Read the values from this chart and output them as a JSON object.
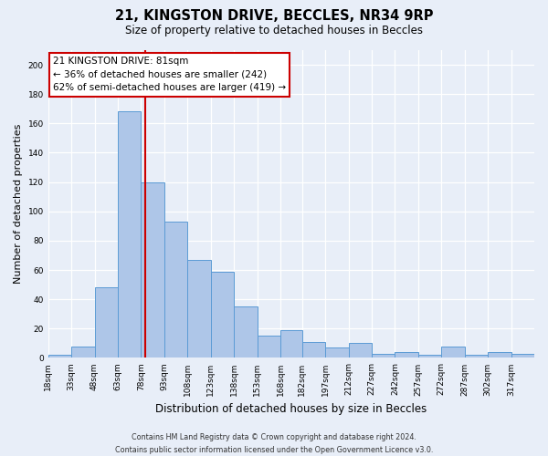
{
  "title": "21, KINGSTON DRIVE, BECCLES, NR34 9RP",
  "subtitle": "Size of property relative to detached houses in Beccles",
  "xlabel": "Distribution of detached houses by size in Beccles",
  "ylabel": "Number of detached properties",
  "bin_edges": [
    18,
    33,
    48,
    63,
    78,
    93,
    108,
    123,
    138,
    153,
    168,
    182,
    197,
    212,
    227,
    242,
    257,
    272,
    287,
    302,
    317,
    332
  ],
  "bin_labels": [
    "18sqm",
    "33sqm",
    "48sqm",
    "63sqm",
    "78sqm",
    "93sqm",
    "108sqm",
    "123sqm",
    "138sqm",
    "153sqm",
    "168sqm",
    "182sqm",
    "197sqm",
    "212sqm",
    "227sqm",
    "242sqm",
    "257sqm",
    "272sqm",
    "287sqm",
    "302sqm",
    "317sqm"
  ],
  "bar_values": [
    2,
    8,
    48,
    168,
    120,
    93,
    67,
    59,
    35,
    15,
    19,
    11,
    7,
    10,
    3,
    4,
    2,
    8,
    2,
    4,
    3
  ],
  "bar_color": "#aec6e8",
  "bar_edge_color": "#5b9bd5",
  "vline_x": 81,
  "vline_color": "#cc0000",
  "ylim": [
    0,
    210
  ],
  "yticks": [
    0,
    20,
    40,
    60,
    80,
    100,
    120,
    140,
    160,
    180,
    200
  ],
  "annotation_title": "21 KINGSTON DRIVE: 81sqm",
  "annotation_line1": "← 36% of detached houses are smaller (242)",
  "annotation_line2": "62% of semi-detached houses are larger (419) →",
  "annotation_box_color": "#ffffff",
  "annotation_box_edge": "#cc0000",
  "footer_line1": "Contains HM Land Registry data © Crown copyright and database right 2024.",
  "footer_line2": "Contains public sector information licensed under the Open Government Licence v3.0.",
  "bg_color": "#e8eef8",
  "plot_bg_color": "#e8eef8"
}
